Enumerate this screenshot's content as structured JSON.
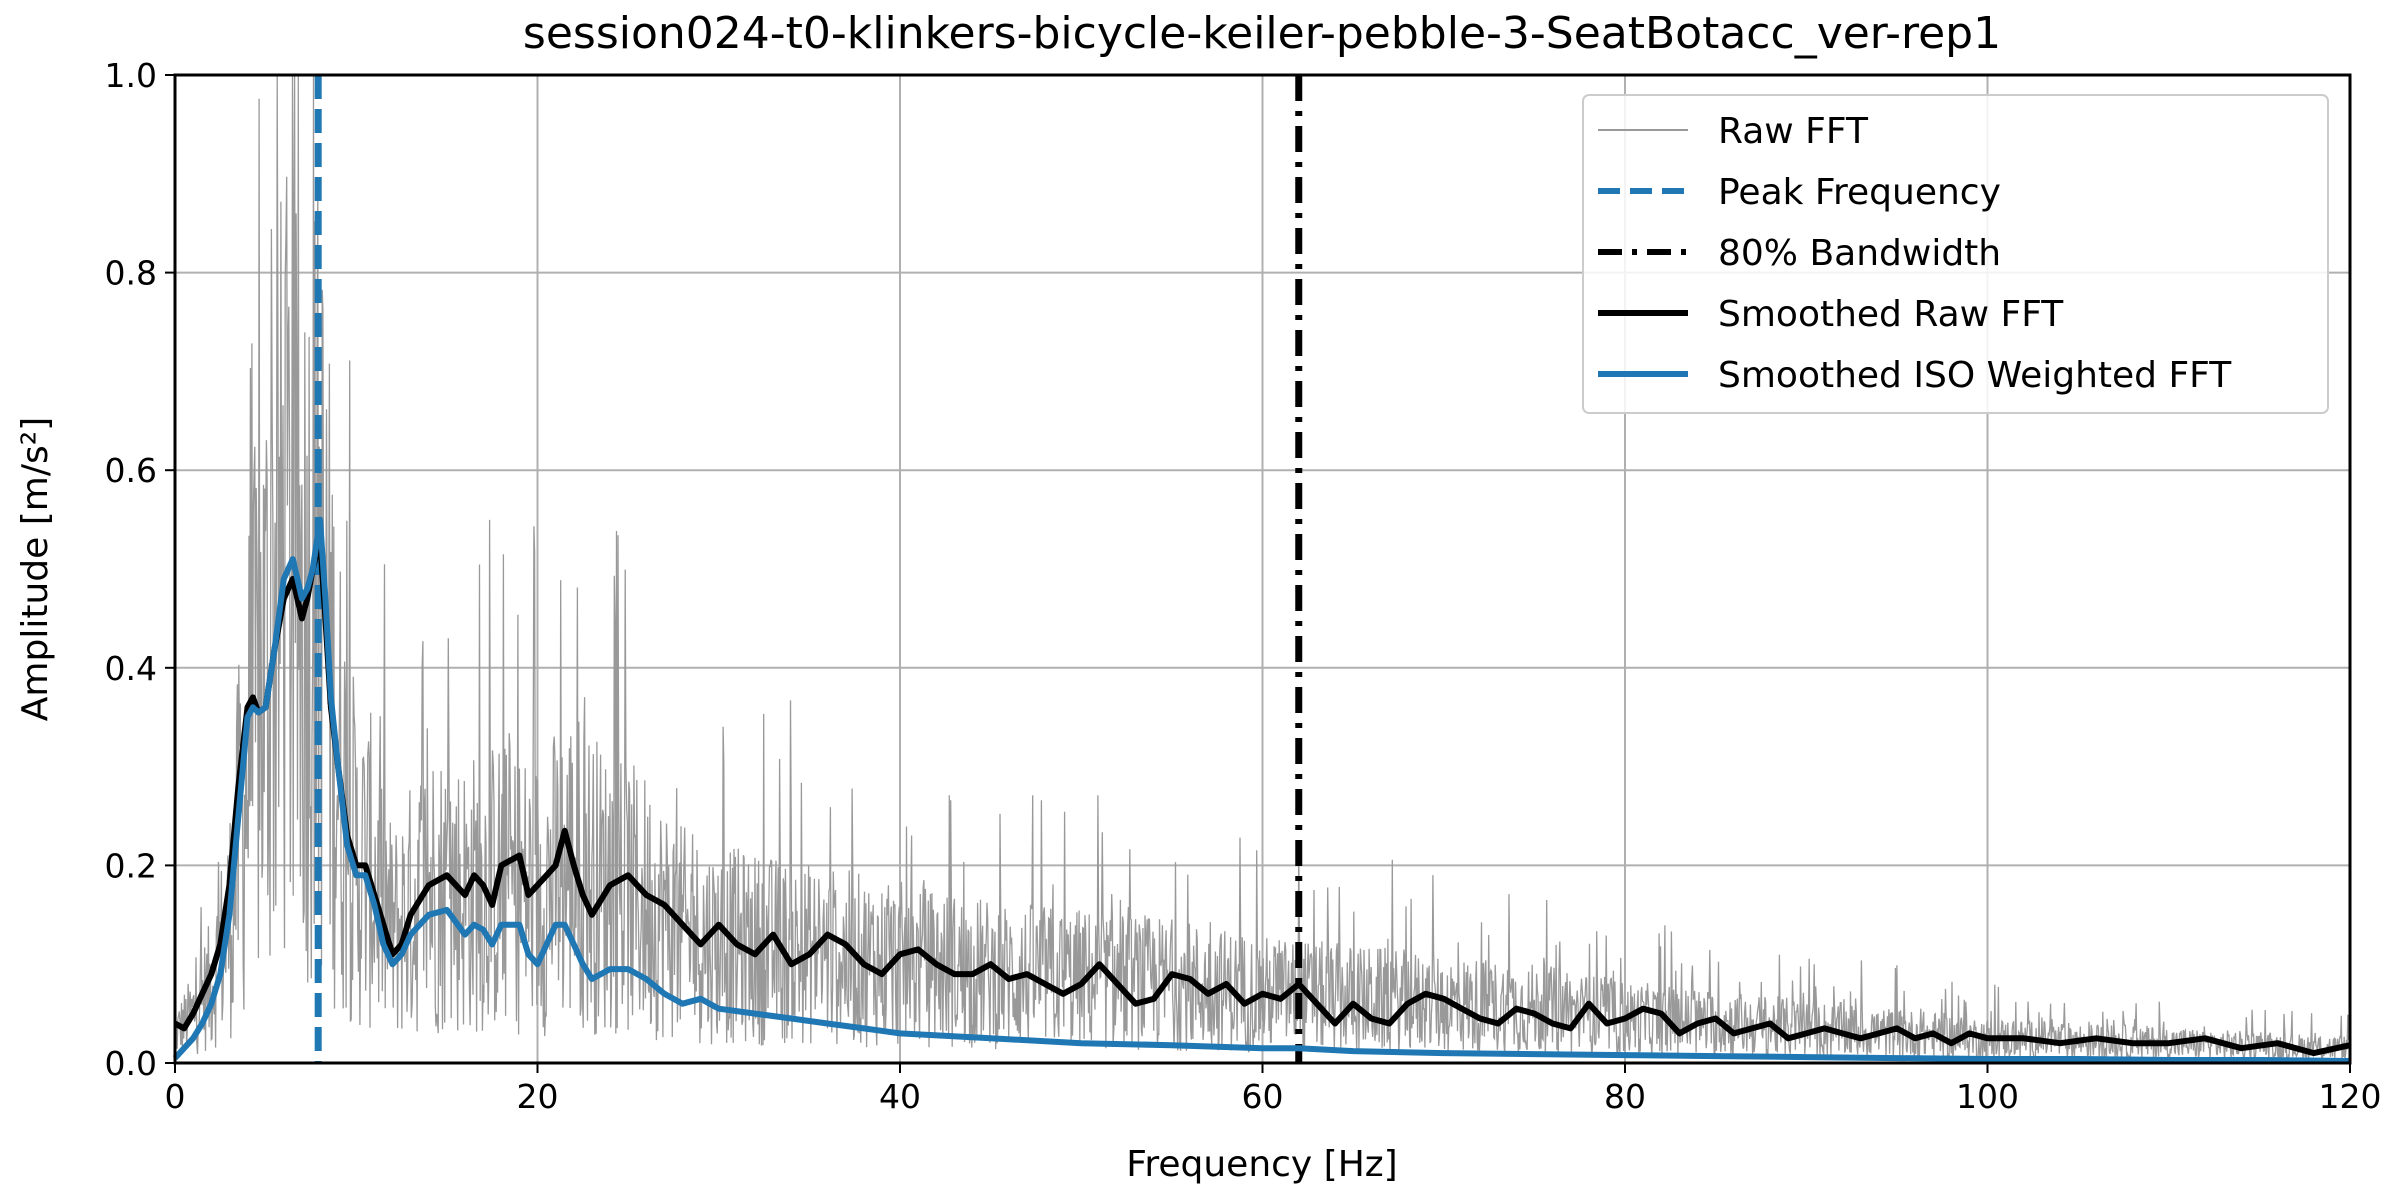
{
  "chart_data": {
    "type": "line",
    "title": "session024-t0-klinkers-bicycle-keiler-pebble-3-SeatBotacc_ver-rep1",
    "xlabel": "Frequency [Hz]",
    "ylabel": "Amplitude [m/s²]",
    "xlim": [
      0,
      120
    ],
    "ylim": [
      0,
      1.0
    ],
    "x_ticks": [
      0,
      20,
      40,
      60,
      80,
      100,
      120
    ],
    "y_ticks": [
      0.0,
      0.2,
      0.4,
      0.6,
      0.8,
      1.0
    ],
    "x_tick_labels": [
      "0",
      "20",
      "40",
      "60",
      "80",
      "100",
      "120"
    ],
    "y_tick_labels": [
      "0.0",
      "0.2",
      "0.4",
      "0.6",
      "0.8",
      "1.0"
    ],
    "grid": true,
    "legend_position": "top-right",
    "colors": {
      "raw": "#999999",
      "peak": "#1f77b4",
      "bandwidth": "#000000",
      "smoothed_raw": "#000000",
      "smoothed_iso": "#1f77b4"
    },
    "peak_frequency": 7.9,
    "bandwidth_80": 62.0,
    "series": [
      {
        "name": "Raw FFT",
        "style": "thin-noisy",
        "envelope_x": [
          0,
          1,
          2,
          3,
          4,
          5,
          6,
          7,
          8,
          9,
          10,
          11,
          12,
          14,
          16,
          18,
          20,
          22,
          24,
          26,
          28,
          30,
          35,
          40,
          45,
          50,
          55,
          60,
          65,
          70,
          75,
          80,
          85,
          90,
          95,
          100,
          105,
          110,
          115,
          120
        ],
        "envelope_y": [
          0.03,
          0.05,
          0.08,
          0.14,
          0.3,
          0.4,
          0.5,
          0.46,
          0.5,
          0.3,
          0.2,
          0.19,
          0.13,
          0.18,
          0.17,
          0.18,
          0.17,
          0.2,
          0.17,
          0.16,
          0.13,
          0.12,
          0.11,
          0.1,
          0.09,
          0.085,
          0.08,
          0.07,
          0.065,
          0.06,
          0.055,
          0.045,
          0.04,
          0.035,
          0.03,
          0.025,
          0.022,
          0.02,
          0.017,
          0.015
        ]
      },
      {
        "name": "Smoothed Raw FFT",
        "x": [
          0,
          0.5,
          1,
          1.5,
          2,
          2.5,
          3,
          3.5,
          4,
          4.3,
          4.6,
          5,
          5.5,
          6,
          6.5,
          7,
          7.3,
          7.6,
          8,
          8.3,
          8.6,
          9,
          9.5,
          10,
          10.5,
          11,
          11.5,
          12,
          12.5,
          13,
          14,
          15,
          16,
          16.5,
          17,
          17.5,
          18,
          19,
          19.5,
          20,
          20.5,
          21,
          21.5,
          22,
          22.5,
          23,
          24,
          25,
          26,
          27,
          28,
          29,
          30,
          31,
          32,
          33,
          34,
          35,
          36,
          37,
          38,
          39,
          40,
          41,
          42,
          43,
          44,
          45,
          46,
          47,
          48,
          49,
          50,
          51,
          52,
          53,
          54,
          55,
          56,
          57,
          58,
          59,
          60,
          61,
          62,
          63,
          64,
          65,
          66,
          67,
          68,
          69,
          70,
          71,
          72,
          73,
          74,
          75,
          76,
          77,
          78,
          79,
          80,
          81,
          82,
          83,
          84,
          85,
          86,
          87,
          88,
          89,
          90,
          91,
          92,
          93,
          94,
          95,
          96,
          97,
          98,
          99,
          100,
          102,
          104,
          106,
          108,
          110,
          112,
          114,
          116,
          118,
          120
        ],
        "y": [
          0.04,
          0.035,
          0.05,
          0.07,
          0.09,
          0.12,
          0.18,
          0.28,
          0.36,
          0.37,
          0.355,
          0.36,
          0.42,
          0.47,
          0.49,
          0.45,
          0.47,
          0.5,
          0.53,
          0.45,
          0.36,
          0.3,
          0.23,
          0.2,
          0.2,
          0.17,
          0.14,
          0.11,
          0.12,
          0.15,
          0.18,
          0.19,
          0.17,
          0.19,
          0.18,
          0.16,
          0.2,
          0.21,
          0.17,
          0.18,
          0.19,
          0.2,
          0.235,
          0.2,
          0.17,
          0.15,
          0.18,
          0.19,
          0.17,
          0.16,
          0.14,
          0.12,
          0.14,
          0.12,
          0.11,
          0.13,
          0.1,
          0.11,
          0.13,
          0.12,
          0.1,
          0.09,
          0.11,
          0.115,
          0.1,
          0.09,
          0.09,
          0.1,
          0.085,
          0.09,
          0.08,
          0.07,
          0.08,
          0.1,
          0.08,
          0.06,
          0.065,
          0.09,
          0.085,
          0.07,
          0.08,
          0.06,
          0.07,
          0.065,
          0.08,
          0.06,
          0.04,
          0.06,
          0.045,
          0.04,
          0.06,
          0.07,
          0.065,
          0.055,
          0.045,
          0.04,
          0.055,
          0.05,
          0.04,
          0.035,
          0.06,
          0.04,
          0.045,
          0.055,
          0.05,
          0.03,
          0.04,
          0.045,
          0.03,
          0.035,
          0.04,
          0.025,
          0.03,
          0.035,
          0.03,
          0.025,
          0.03,
          0.035,
          0.025,
          0.03,
          0.02,
          0.03,
          0.025,
          0.025,
          0.02,
          0.025,
          0.02,
          0.02,
          0.025,
          0.015,
          0.02,
          0.01,
          0.018
        ]
      },
      {
        "name": "Smoothed ISO Weighted FFT",
        "x": [
          0,
          0.5,
          1,
          1.5,
          2,
          2.5,
          3,
          3.5,
          4,
          4.3,
          4.6,
          5,
          5.5,
          6,
          6.5,
          7,
          7.3,
          7.6,
          8,
          8.3,
          8.6,
          9,
          9.5,
          10,
          10.5,
          11,
          11.5,
          12,
          12.5,
          13,
          14,
          15,
          16,
          16.5,
          17,
          17.5,
          18,
          19,
          19.5,
          20,
          20.5,
          21,
          21.5,
          22,
          22.5,
          23,
          24,
          25,
          26,
          27,
          28,
          29,
          30,
          32,
          34,
          36,
          38,
          40,
          45,
          50,
          55,
          60,
          62,
          65,
          70,
          75,
          80,
          85,
          90,
          95,
          100,
          105,
          110,
          115,
          120
        ],
        "y": [
          0.005,
          0.015,
          0.025,
          0.04,
          0.06,
          0.09,
          0.15,
          0.25,
          0.35,
          0.36,
          0.355,
          0.36,
          0.42,
          0.49,
          0.51,
          0.47,
          0.48,
          0.5,
          0.55,
          0.47,
          0.37,
          0.3,
          0.22,
          0.19,
          0.19,
          0.16,
          0.12,
          0.1,
          0.11,
          0.13,
          0.15,
          0.155,
          0.13,
          0.14,
          0.135,
          0.12,
          0.14,
          0.14,
          0.11,
          0.1,
          0.12,
          0.14,
          0.14,
          0.12,
          0.1,
          0.085,
          0.095,
          0.095,
          0.085,
          0.07,
          0.06,
          0.065,
          0.055,
          0.05,
          0.045,
          0.04,
          0.035,
          0.03,
          0.025,
          0.02,
          0.018,
          0.015,
          0.015,
          0.012,
          0.01,
          0.009,
          0.008,
          0.007,
          0.006,
          0.005,
          0.004,
          0.004,
          0.003,
          0.003,
          0.002
        ]
      }
    ],
    "legend": [
      {
        "label": "Raw FFT",
        "style": "thin",
        "color": "#999999"
      },
      {
        "label": "Peak Frequency",
        "style": "dashed",
        "color": "#1f77b4"
      },
      {
        "label": "80% Bandwidth",
        "style": "dashdot",
        "color": "#000000"
      },
      {
        "label": "Smoothed Raw FFT",
        "style": "solid",
        "color": "#000000"
      },
      {
        "label": "Smoothed ISO Weighted FFT",
        "style": "solid",
        "color": "#1f77b4"
      }
    ]
  }
}
